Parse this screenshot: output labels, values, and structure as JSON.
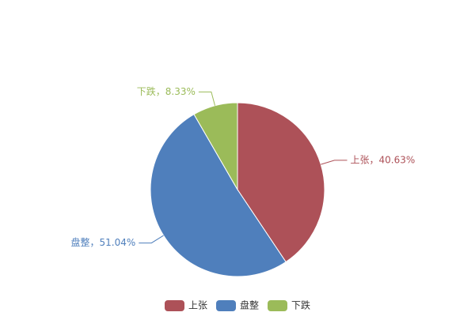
{
  "chart_data": {
    "type": "pie",
    "categories": [
      "上张",
      "盘整",
      "下跌"
    ],
    "values": [
      40.63,
      51.04,
      8.33
    ],
    "value_labels": [
      "上张，40.63%",
      "盘整，51.04%",
      "下跌，8.33%"
    ],
    "colors": [
      "#ad5158",
      "#4f7fbc",
      "#9bbb59"
    ],
    "legend": "bottom"
  }
}
